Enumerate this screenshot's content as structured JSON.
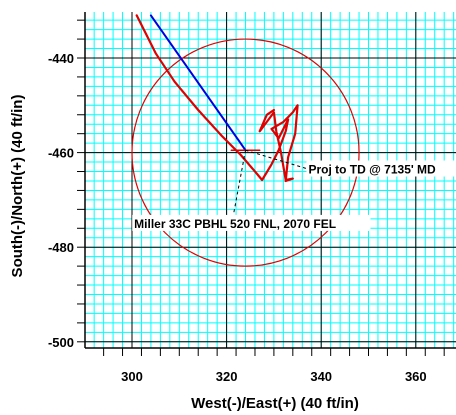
{
  "chart_data": {
    "type": "line",
    "xlabel": "West(-)/East(+) (40 ft/in)",
    "ylabel": "South(-)/North(+) (40 ft/in)",
    "xlim": [
      290,
      370
    ],
    "ylim": [
      -500,
      -431
    ],
    "grid": true,
    "x_major_ticks": [
      300,
      320,
      340,
      360
    ],
    "y_major_ticks": [
      -500,
      -480,
      -460,
      -440
    ],
    "x_tick_labels": [
      "300",
      "320",
      "340",
      "360"
    ],
    "y_tick_labels": [
      "-500",
      "-480",
      "-460",
      "-440"
    ],
    "colors": {
      "grid": "#00ffff",
      "actual": "#e00000",
      "planned": "#0000e0",
      "target": "#e00000",
      "leader": "#000000"
    },
    "series": [
      {
        "role": "planned",
        "points": [
          [
            304.0,
            -431.0
          ],
          [
            324.0,
            -459.5
          ]
        ]
      },
      {
        "role": "actual",
        "points": [
          [
            301.0,
            -431.0
          ],
          [
            305.0,
            -439.0
          ],
          [
            309.0,
            -445.0
          ],
          [
            314.0,
            -451.0
          ],
          [
            319.0,
            -456.5
          ],
          [
            323.0,
            -460.5
          ],
          [
            326.0,
            -464.0
          ],
          [
            327.5,
            -465.8
          ],
          [
            329.5,
            -462.5
          ],
          [
            331.0,
            -459.5
          ],
          [
            332.5,
            -455.5
          ],
          [
            333.0,
            -453.0
          ],
          [
            331.0,
            -457.0
          ],
          [
            329.5,
            -455.0
          ],
          [
            332.0,
            -453.5
          ],
          [
            334.0,
            -451.5
          ],
          [
            335.0,
            -450.0
          ],
          [
            334.5,
            -456.0
          ],
          [
            333.0,
            -461.0
          ],
          [
            332.5,
            -466.0
          ],
          [
            334.0,
            -465.5
          ],
          [
            332.5,
            -465.8
          ],
          [
            331.5,
            -460.0
          ],
          [
            330.5,
            -455.5
          ],
          [
            330.0,
            -451.5
          ],
          [
            328.5,
            -453.5
          ],
          [
            327.0,
            -455.5
          ],
          [
            328.5,
            -452.0
          ],
          [
            330.0,
            -451.0
          ]
        ]
      },
      {
        "role": "target-line",
        "points": [
          [
            321.0,
            -459.5
          ],
          [
            327.0,
            -459.5
          ]
        ]
      }
    ],
    "target_circle": {
      "center": [
        324.0,
        -460.0
      ],
      "radius": 24.0
    },
    "annotations": [
      {
        "text": "Proj to TD @ 7135' MD",
        "point": [
          324.0,
          -459.5
        ],
        "label_at": [
          339.0,
          -464.0
        ]
      },
      {
        "text": "Miller 33C PBHL 520 FNL, 2070 FEL",
        "point": [
          324.0,
          -459.5
        ],
        "label_at": [
          321.0,
          -475.5
        ]
      }
    ]
  }
}
